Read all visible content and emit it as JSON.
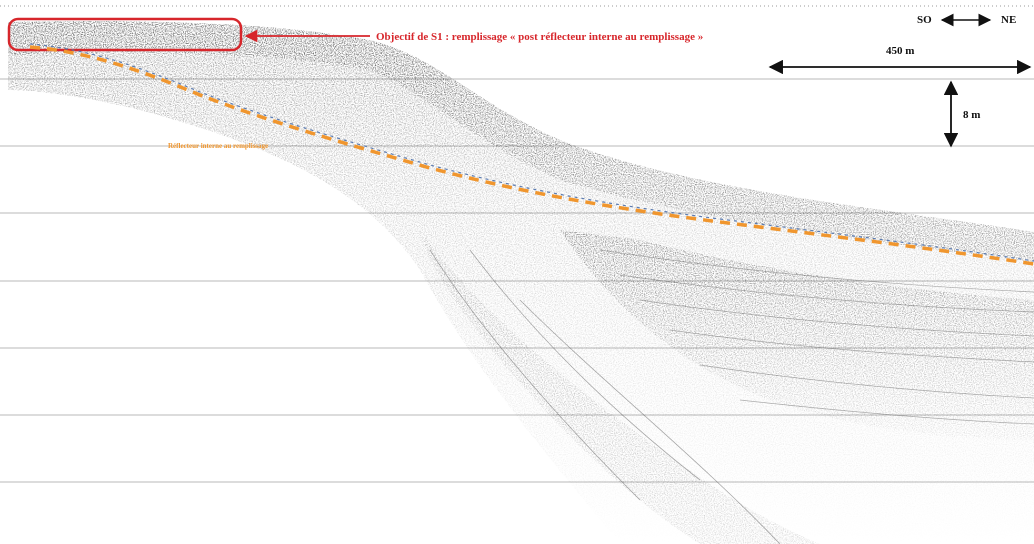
{
  "colors": {
    "annotation_red": "#d7262b",
    "reflector_orange": "#f0962e",
    "reflector_blue": "#5b7bb0",
    "ink": "#2a2a2a",
    "grid": "#b9b9b9"
  },
  "annotations": {
    "objective": "Objectif de S1 : remplissage « post réflecteur interne au remplissage »",
    "reflector": "Réflecteur interne au remplissage"
  },
  "orientation": {
    "left": "SO",
    "right": "NE"
  },
  "scale": {
    "horizontal": "450 m",
    "vertical": "8 m"
  }
}
